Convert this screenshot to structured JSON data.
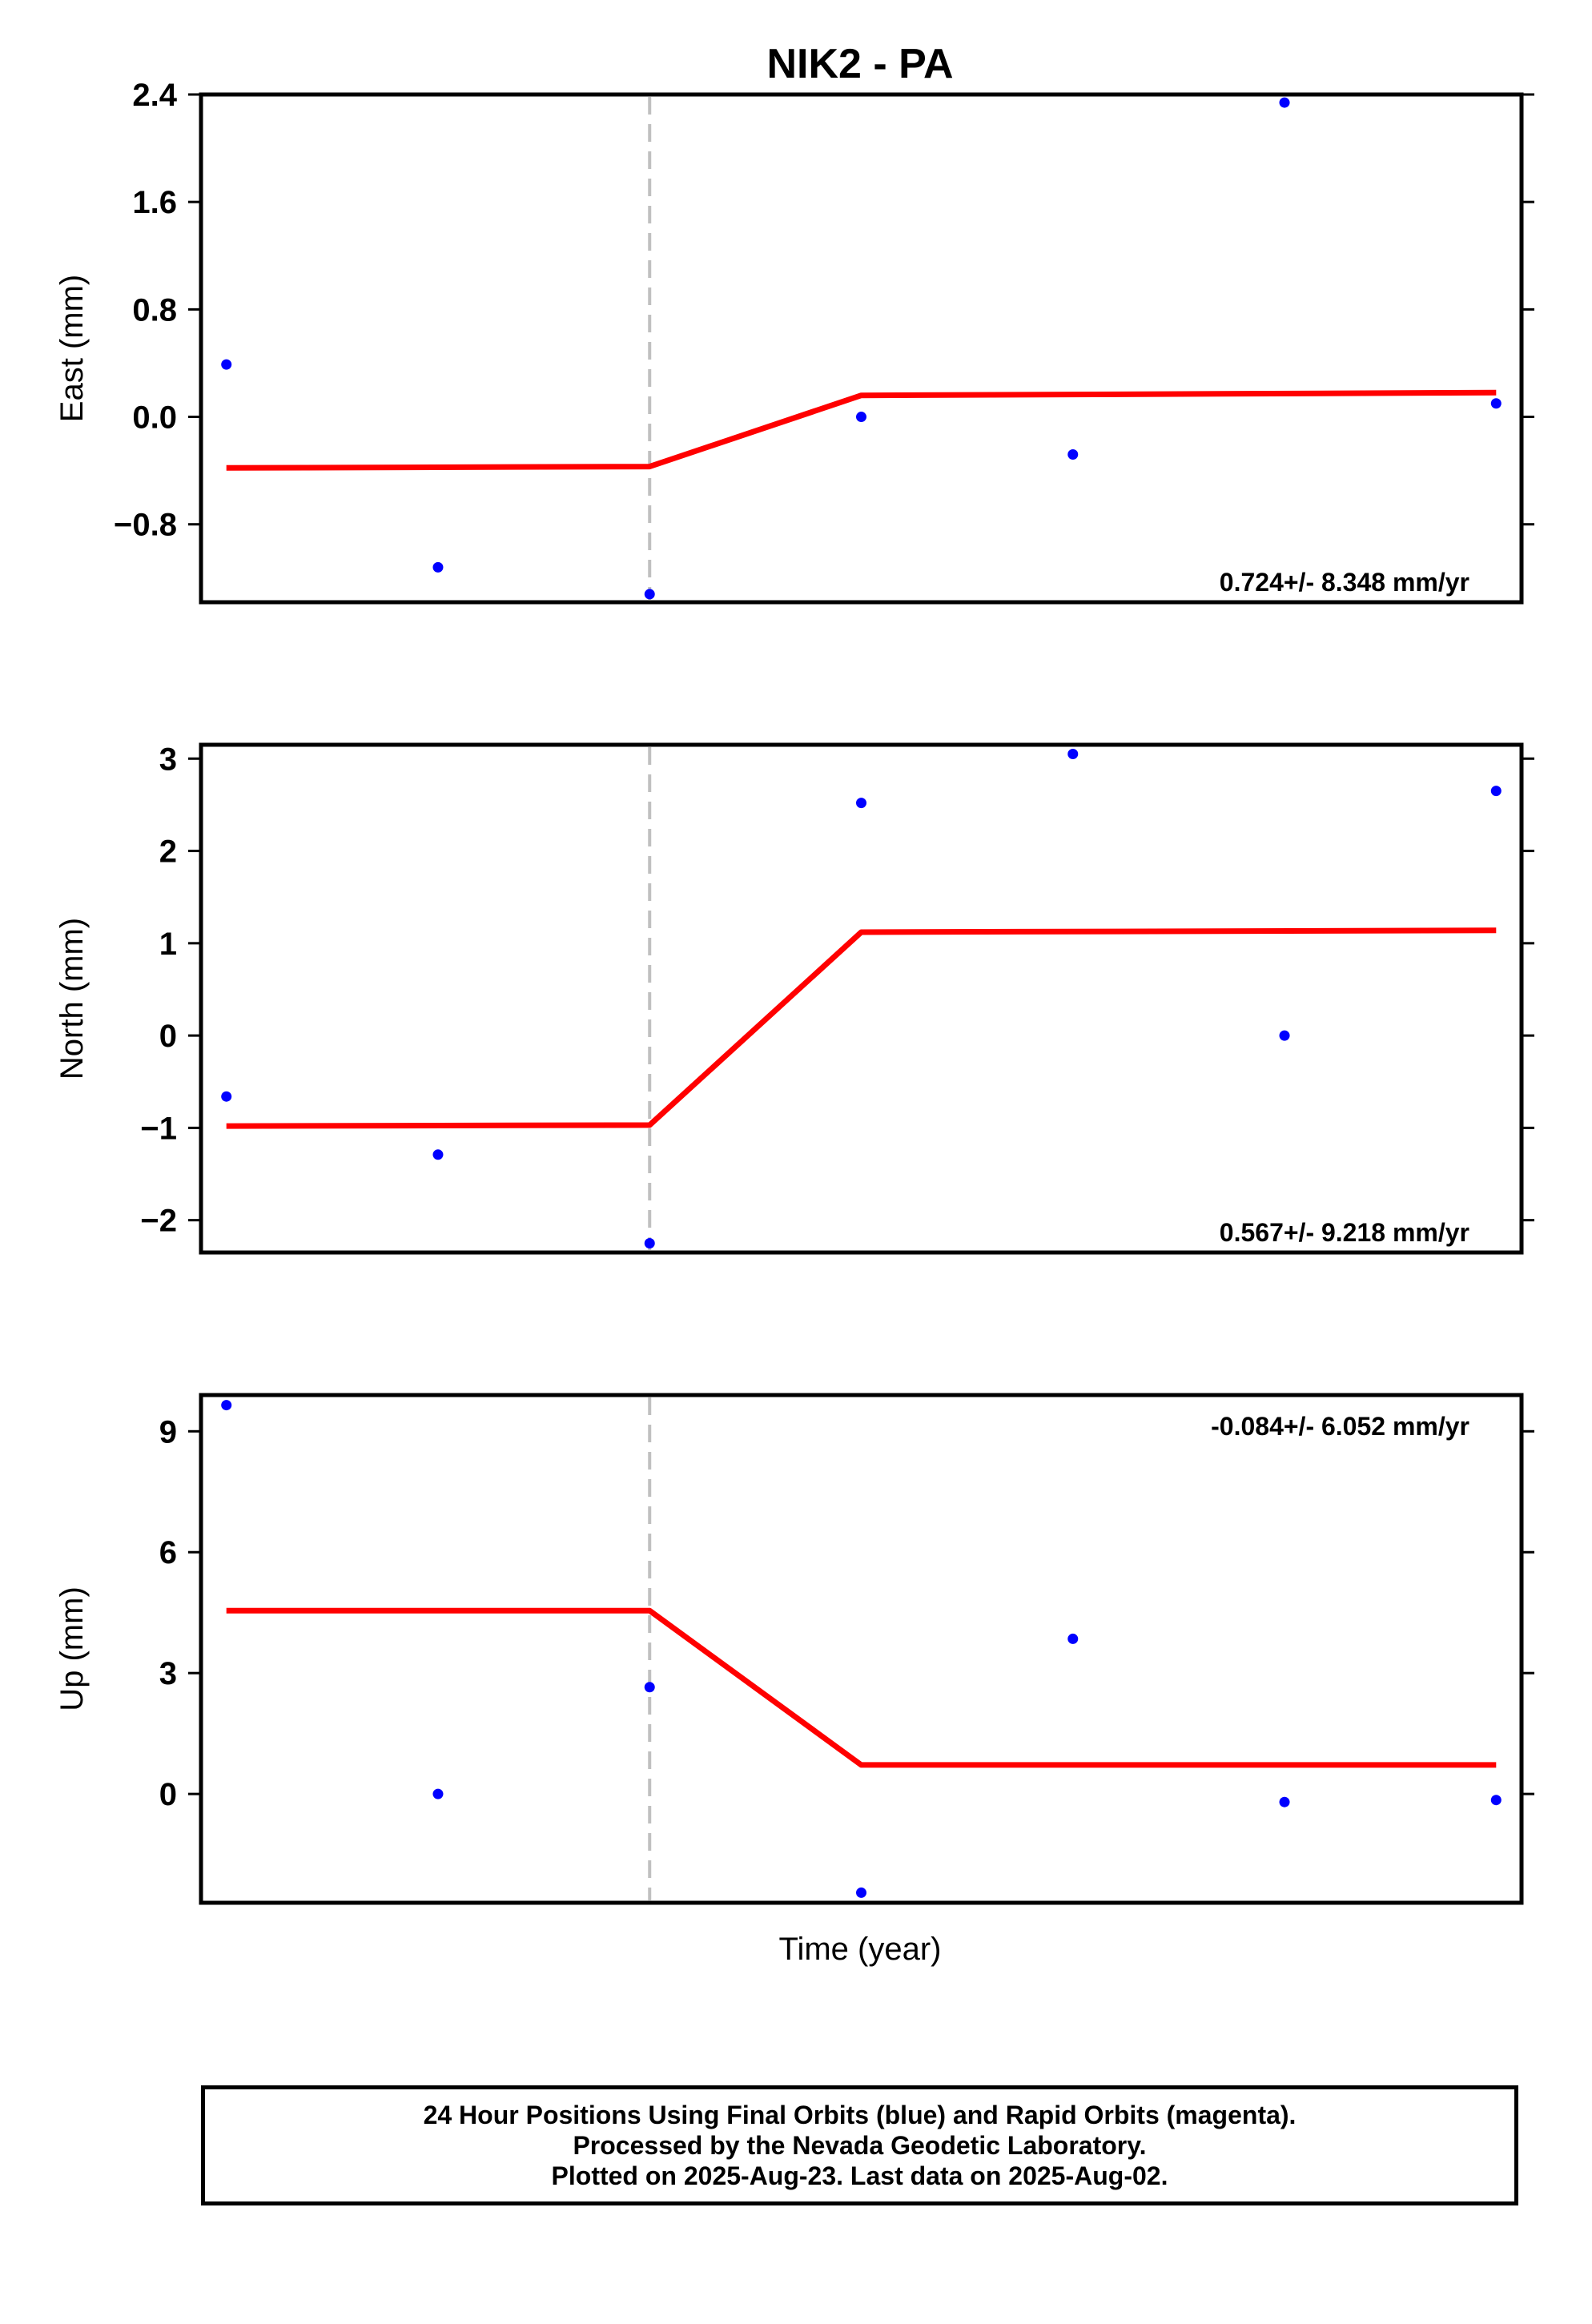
{
  "title": "NIK2 - PA",
  "xlabel": "Time (year)",
  "colors": {
    "data_points": "#0000ff",
    "model_line": "#ff0000",
    "event_line": "#c0c0c0",
    "frame": "#000000"
  },
  "footer": {
    "line1": "24 Hour Positions Using Final Orbits (blue) and Rapid Orbits (magenta).",
    "line2": "Processed by the Nevada Geodetic Laboratory.",
    "line3": "Plotted on 2025-Aug-23. Last data on 2025-Aug-02."
  },
  "chart_data": [
    {
      "type": "scatter",
      "ylabel": "East (mm)",
      "rate_text": "0.724+/- 8.348 mm/yr",
      "rate_position": "bottom-right",
      "ylim": [
        -1.38,
        2.4
      ],
      "yticks": [
        -0.8,
        0.0,
        0.8,
        1.6,
        2.4
      ],
      "ytick_labels": [
        "−0.8",
        "0.0",
        "0.8",
        "1.6",
        "2.4"
      ],
      "event_x": 3,
      "points": [
        [
          1,
          0.39
        ],
        [
          2,
          -1.12
        ],
        [
          3,
          -1.32
        ],
        [
          4,
          0.0
        ],
        [
          5,
          -0.28
        ],
        [
          6,
          2.34
        ],
        [
          7,
          0.1
        ]
      ],
      "model": [
        [
          1,
          -0.38
        ],
        [
          3,
          -0.37
        ],
        [
          4,
          0.16
        ],
        [
          7,
          0.18
        ]
      ]
    },
    {
      "type": "scatter",
      "ylabel": "North (mm)",
      "rate_text": "0.567+/- 9.218 mm/yr",
      "rate_position": "bottom-right",
      "ylim": [
        -2.35,
        3.15
      ],
      "yticks": [
        -2,
        -1,
        0,
        1,
        2,
        3
      ],
      "ytick_labels": [
        "−2",
        "−1",
        "0",
        "1",
        "2",
        "3"
      ],
      "event_x": 3,
      "points": [
        [
          1,
          -0.66
        ],
        [
          2,
          -1.29
        ],
        [
          3,
          -2.25
        ],
        [
          4,
          2.52
        ],
        [
          5,
          3.05
        ],
        [
          6,
          0.0
        ],
        [
          7,
          2.65
        ]
      ],
      "model": [
        [
          1,
          -0.98
        ],
        [
          3,
          -0.97
        ],
        [
          4,
          1.12
        ],
        [
          7,
          1.14
        ]
      ]
    },
    {
      "type": "scatter",
      "ylabel": "Up (mm)",
      "rate_text": "-0.084+/- 6.052 mm/yr",
      "rate_position": "top-right",
      "ylim": [
        -2.7,
        9.9
      ],
      "yticks": [
        0,
        3,
        6,
        9
      ],
      "ytick_labels": [
        "0",
        "3",
        "6",
        "9"
      ],
      "event_x": 3,
      "points": [
        [
          1,
          9.65
        ],
        [
          2,
          0.0
        ],
        [
          3,
          2.65
        ],
        [
          4,
          -2.45
        ],
        [
          5,
          3.85
        ],
        [
          6,
          -0.2
        ],
        [
          7,
          -0.15
        ]
      ],
      "model": [
        [
          1,
          4.55
        ],
        [
          3,
          4.55
        ],
        [
          4,
          0.72
        ],
        [
          7,
          0.72
        ]
      ]
    }
  ]
}
